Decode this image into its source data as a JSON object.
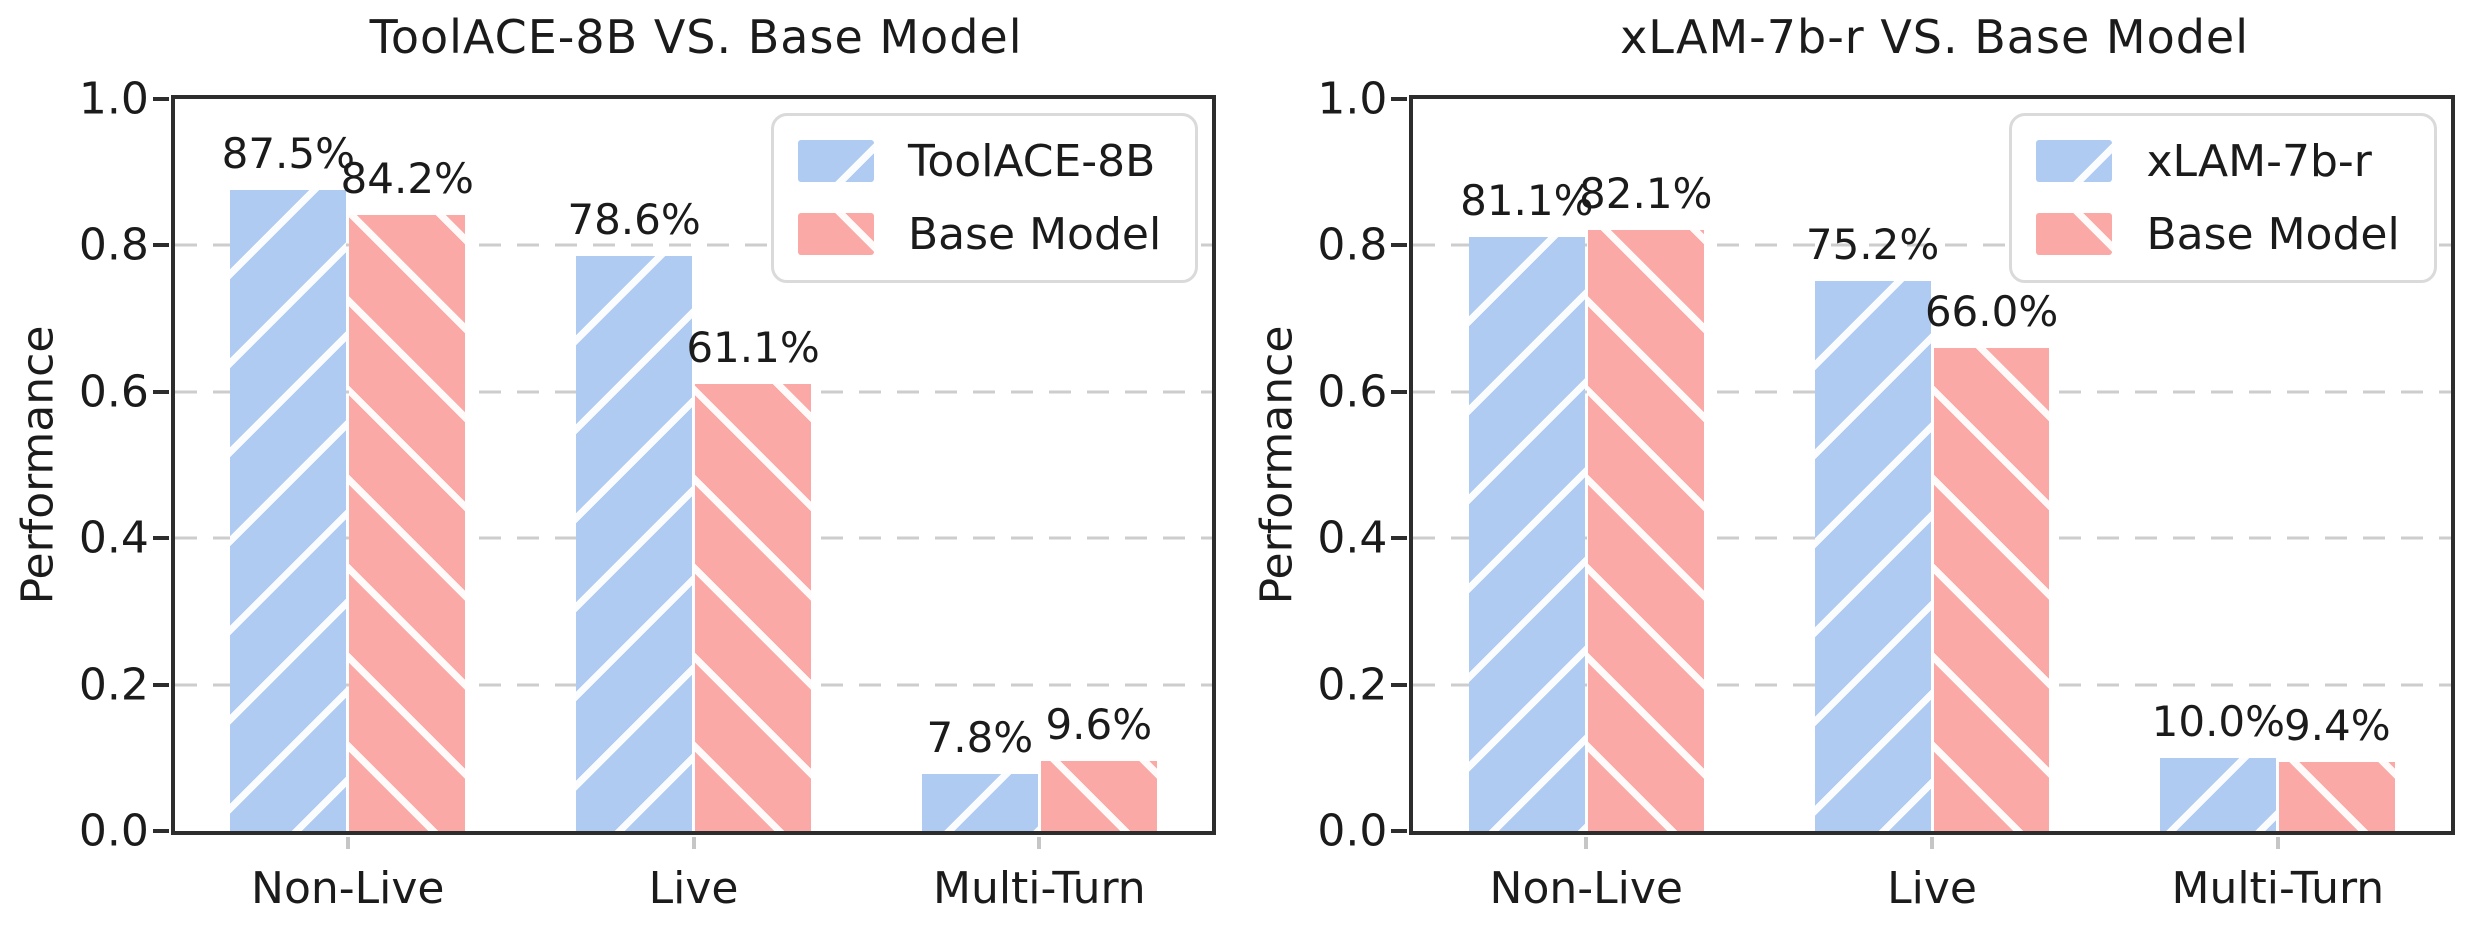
{
  "figure": {
    "background": "#ffffff"
  },
  "styles": {
    "axis_color": "#2d2d2d",
    "grid_color": "#cdcdcd",
    "text_color": "#1b1b1b",
    "hatch_color": "#ffffff"
  },
  "chart_data": [
    {
      "type": "bar",
      "title": "ToolACE-8B VS. Base Model",
      "xlabel": "",
      "ylabel": "Performance",
      "ylim": [
        0,
        1.0
      ],
      "yticks": [
        0.0,
        0.2,
        0.4,
        0.6,
        0.8,
        1.0
      ],
      "ytick_labels": [
        "0.0",
        "0.2",
        "0.4",
        "0.6",
        "0.8",
        "1.0"
      ],
      "grid": "horizontal-dashed",
      "legend_position": "top-right",
      "categories": [
        "Non-Live",
        "Live",
        "Multi-Turn"
      ],
      "series": [
        {
          "name": "ToolACE-8B",
          "color": "#afcbf1",
          "hatch": "/",
          "values": [
            0.875,
            0.786,
            0.078
          ],
          "labels": [
            "87.5%",
            "78.6%",
            "7.8%"
          ]
        },
        {
          "name": "Base Model",
          "color": "#faa9a6",
          "hatch": "\\",
          "values": [
            0.842,
            0.611,
            0.096
          ],
          "labels": [
            "84.2%",
            "61.1%",
            "9.6%"
          ]
        }
      ]
    },
    {
      "type": "bar",
      "title": "xLAM-7b-r VS. Base Model",
      "xlabel": "",
      "ylabel": "Performance",
      "ylim": [
        0,
        1.0
      ],
      "yticks": [
        0.0,
        0.2,
        0.4,
        0.6,
        0.8,
        1.0
      ],
      "ytick_labels": [
        "0.0",
        "0.2",
        "0.4",
        "0.6",
        "0.8",
        "1.0"
      ],
      "grid": "horizontal-dashed",
      "legend_position": "top-right",
      "categories": [
        "Non-Live",
        "Live",
        "Multi-Turn"
      ],
      "series": [
        {
          "name": "xLAM-7b-r",
          "color": "#afcbf1",
          "hatch": "/",
          "values": [
            0.811,
            0.752,
            0.1
          ],
          "labels": [
            "81.1%",
            "75.2%",
            "10.0%"
          ]
        },
        {
          "name": "Base Model",
          "color": "#faa9a6",
          "hatch": "\\",
          "values": [
            0.821,
            0.66,
            0.094
          ],
          "labels": [
            "82.1%",
            "66.0%",
            "9.4%"
          ]
        }
      ]
    }
  ]
}
